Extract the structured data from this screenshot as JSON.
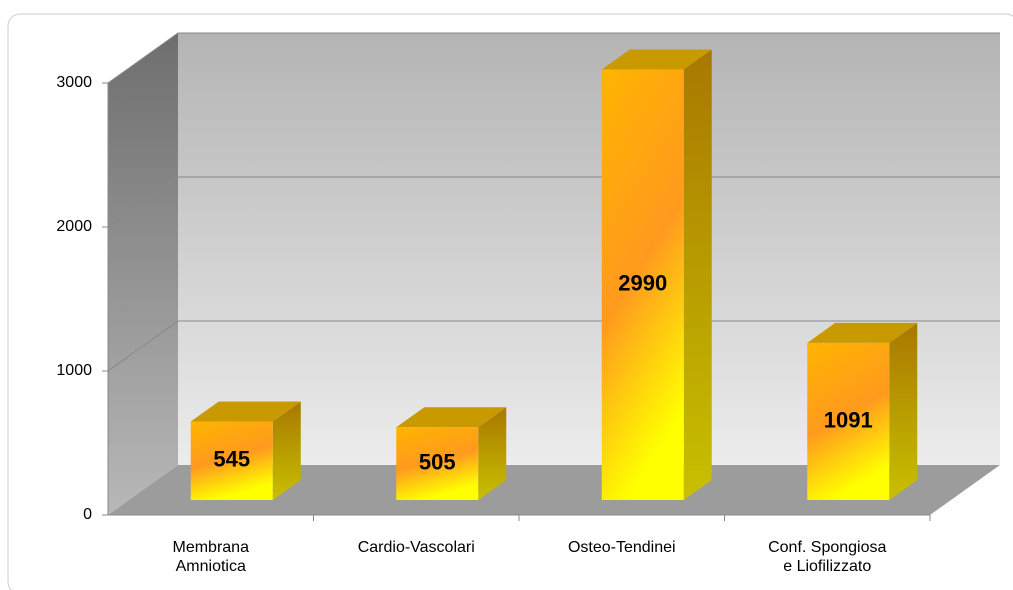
{
  "chart_data": {
    "type": "bar3d",
    "categories": [
      "Membrana Amniotica",
      "Cardio-Vascolari",
      "Osteo-Tendinei",
      "Conf. Spongiosa e Liofilizzato"
    ],
    "values": [
      545,
      505,
      2990,
      1091
    ],
    "ylim": [
      0,
      3000
    ],
    "yticks": [
      0,
      1000,
      2000,
      3000
    ],
    "grid": true
  }
}
